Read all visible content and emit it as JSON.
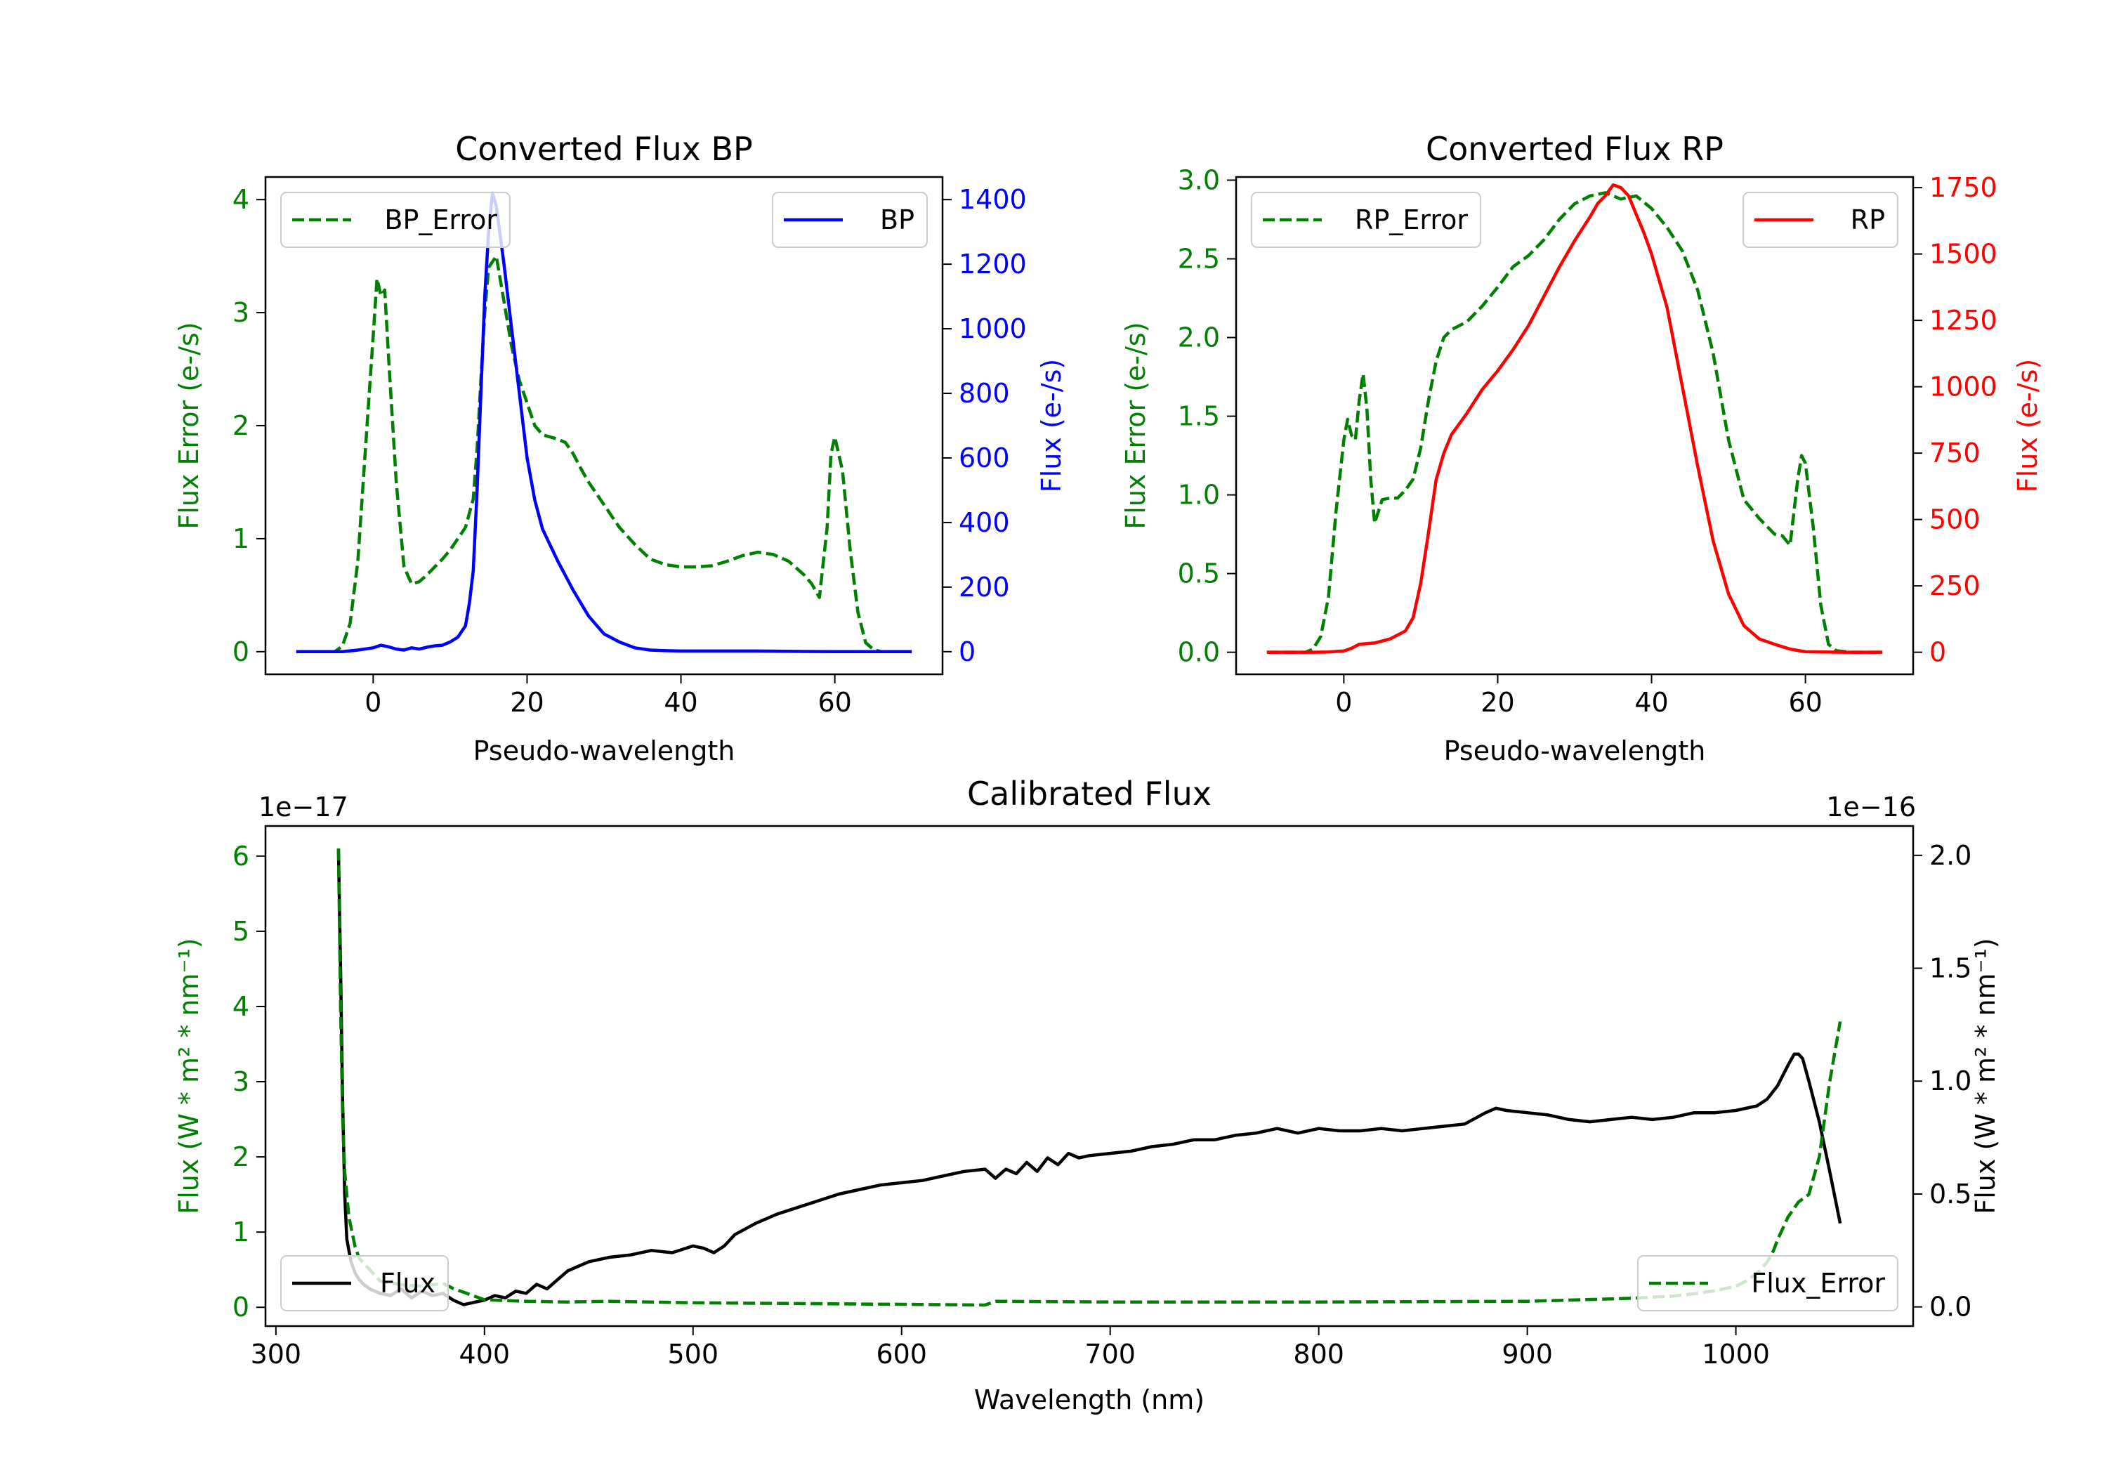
{
  "chart_data": [
    {
      "id": "bp",
      "type": "line",
      "title": "Converted Flux BP",
      "xlabel": "Pseudo-wavelength",
      "ylabel_left": "Flux Error (e-/s)",
      "ylabel_right": "Flux (e-/s)",
      "xlim": [
        -14,
        74
      ],
      "ylim_left": [
        -0.2,
        4.2
      ],
      "ylim_right": [
        -70,
        1470
      ],
      "xticks": [
        0,
        20,
        40,
        60
      ],
      "yticks_left": [
        0,
        1,
        2,
        3,
        4
      ],
      "yticks_right": [
        0,
        200,
        400,
        600,
        800,
        1000,
        1200,
        1400
      ],
      "legend_left": {
        "label": "BP_Error",
        "position": "upper left"
      },
      "legend_right": {
        "label": "BP",
        "position": "upper right"
      },
      "series": [
        {
          "name": "BP_Error",
          "axis": "left",
          "color": "#008000",
          "dash": true,
          "x": [
            -10,
            -5,
            -4,
            -3,
            -2,
            -1,
            0,
            0.5,
            1,
            1.5,
            2,
            3,
            4,
            5,
            6,
            7,
            8,
            9,
            10,
            11,
            12,
            13,
            13.5,
            14,
            14.5,
            15,
            16,
            17,
            18,
            19,
            20,
            21,
            22,
            23,
            24,
            25,
            26,
            27,
            28,
            30,
            32,
            34,
            36,
            38,
            40,
            42,
            44,
            46,
            48,
            50,
            52,
            54,
            56,
            57,
            58,
            59,
            59.5,
            60,
            61,
            62,
            63,
            64,
            65,
            66,
            68,
            70
          ],
          "y": [
            0,
            0,
            0.05,
            0.25,
            0.8,
            1.8,
            2.8,
            3.3,
            3.15,
            3.2,
            2.6,
            1.5,
            0.75,
            0.6,
            0.62,
            0.68,
            0.75,
            0.82,
            0.9,
            1.0,
            1.1,
            1.35,
            1.8,
            2.4,
            3.0,
            3.4,
            3.5,
            3.1,
            2.7,
            2.4,
            2.2,
            2.0,
            1.92,
            1.9,
            1.88,
            1.85,
            1.75,
            1.62,
            1.5,
            1.3,
            1.1,
            0.95,
            0.82,
            0.77,
            0.75,
            0.75,
            0.76,
            0.8,
            0.85,
            0.88,
            0.86,
            0.8,
            0.68,
            0.6,
            0.48,
            1.1,
            1.75,
            1.9,
            1.6,
            0.9,
            0.35,
            0.08,
            0.02,
            0,
            0,
            0
          ]
        },
        {
          "name": "BP",
          "axis": "right",
          "color": "#0000ff",
          "dash": false,
          "x": [
            -10,
            -4,
            -2,
            0,
            1,
            2,
            3,
            4,
            5,
            6,
            7,
            8,
            9,
            10,
            11,
            12,
            12.5,
            13,
            13.5,
            14,
            14.5,
            15,
            15.5,
            16,
            17,
            18,
            19,
            20,
            21,
            22,
            24,
            26,
            28,
            30,
            32,
            34,
            36,
            38,
            40,
            45,
            50,
            55,
            60,
            65,
            70
          ],
          "y": [
            0,
            0,
            5,
            12,
            20,
            15,
            8,
            5,
            12,
            8,
            14,
            18,
            20,
            30,
            45,
            80,
            150,
            250,
            500,
            800,
            1100,
            1300,
            1420,
            1380,
            1200,
            1000,
            800,
            600,
            470,
            380,
            280,
            190,
            110,
            55,
            30,
            12,
            5,
            3,
            2,
            2,
            2,
            1,
            0,
            0,
            0
          ]
        }
      ]
    },
    {
      "id": "rp",
      "type": "line",
      "title": "Converted Flux RP",
      "xlabel": "Pseudo-wavelength",
      "ylabel_left": "Flux Error (e-/s)",
      "ylabel_right": "Flux (e-/s)",
      "xlim": [
        -14,
        74
      ],
      "ylim_left": [
        -0.14,
        3.02
      ],
      "ylim_right": [
        -83,
        1790
      ],
      "xticks": [
        0,
        20,
        40,
        60
      ],
      "yticks_left": [
        0.0,
        0.5,
        1.0,
        1.5,
        2.0,
        2.5,
        3.0
      ],
      "yticks_right": [
        0,
        250,
        500,
        750,
        1000,
        1250,
        1500,
        1750
      ],
      "legend_left": {
        "label": "RP_Error",
        "position": "upper left"
      },
      "legend_right": {
        "label": "RP",
        "position": "upper right"
      },
      "series": [
        {
          "name": "RP_Error",
          "axis": "left",
          "color": "#008000",
          "dash": true,
          "x": [
            -10,
            -5,
            -4,
            -3,
            -2,
            -1,
            0,
            0.5,
            1,
            1.5,
            2,
            2.5,
            3,
            3.5,
            4,
            5,
            6,
            7,
            8,
            9,
            10,
            11,
            12,
            13,
            14,
            16,
            18,
            20,
            22,
            24,
            26,
            28,
            30,
            32,
            34,
            35,
            36,
            38,
            40,
            42,
            44,
            46,
            48,
            50,
            52,
            54,
            56,
            57,
            58,
            59,
            59.5,
            60,
            61,
            62,
            63,
            64,
            66,
            70
          ],
          "y": [
            0,
            0,
            0.02,
            0.1,
            0.35,
            0.9,
            1.35,
            1.48,
            1.38,
            1.35,
            1.6,
            1.77,
            1.55,
            1.1,
            0.82,
            0.97,
            0.98,
            0.98,
            1.03,
            1.1,
            1.3,
            1.6,
            1.85,
            2.0,
            2.05,
            2.1,
            2.2,
            2.32,
            2.45,
            2.52,
            2.62,
            2.75,
            2.85,
            2.9,
            2.92,
            2.9,
            2.88,
            2.9,
            2.82,
            2.7,
            2.55,
            2.3,
            1.9,
            1.35,
            0.97,
            0.85,
            0.75,
            0.74,
            0.68,
            1.1,
            1.25,
            1.2,
            0.8,
            0.3,
            0.05,
            0.01,
            0,
            0
          ]
        },
        {
          "name": "RP",
          "axis": "right",
          "color": "#ff0000",
          "dash": false,
          "x": [
            -10,
            -4,
            -2,
            0,
            1,
            2,
            4,
            6,
            8,
            9,
            10,
            11,
            12,
            13,
            14,
            16,
            18,
            20,
            22,
            24,
            26,
            28,
            30,
            32,
            33,
            34,
            35,
            36,
            37,
            38,
            39,
            40,
            42,
            44,
            46,
            48,
            50,
            52,
            54,
            56,
            58,
            60,
            65,
            70
          ],
          "y": [
            0,
            0,
            1,
            5,
            15,
            30,
            35,
            50,
            80,
            130,
            260,
            450,
            650,
            750,
            820,
            900,
            990,
            1060,
            1140,
            1230,
            1340,
            1450,
            1550,
            1640,
            1690,
            1720,
            1760,
            1750,
            1720,
            1650,
            1580,
            1500,
            1300,
            1000,
            700,
            420,
            220,
            100,
            50,
            30,
            12,
            2,
            0,
            0
          ]
        }
      ]
    },
    {
      "id": "calibrated",
      "type": "line",
      "title": "Calibrated Flux",
      "xlabel": "Wavelength (nm)",
      "ylabel_left": "Flux (W * m² * nm⁻¹)",
      "ylabel_right": "Flux (W * m² * nm⁻¹)",
      "offset_left": "1e−17",
      "offset_right": "1e−16",
      "xlim": [
        295,
        1085
      ],
      "ylim_left": [
        -0.25,
        6.4
      ],
      "ylim_right": [
        -0.085,
        2.13
      ],
      "xticks": [
        300,
        400,
        500,
        600,
        700,
        800,
        900,
        1000
      ],
      "yticks_left": [
        0,
        1,
        2,
        3,
        4,
        5,
        6
      ],
      "yticks_right": [
        0.0,
        0.5,
        1.0,
        1.5,
        2.0
      ],
      "legend_left": {
        "label": "Flux",
        "position": "lower left"
      },
      "legend_right": {
        "label": "Flux_Error",
        "position": "lower right"
      },
      "series": [
        {
          "name": "Flux",
          "axis": "right",
          "color": "#000000",
          "dash": false,
          "x": [
            330,
            331,
            332,
            333,
            334,
            336,
            338,
            340,
            342,
            345,
            350,
            355,
            360,
            365,
            370,
            375,
            380,
            385,
            390,
            395,
            400,
            405,
            410,
            415,
            420,
            425,
            430,
            435,
            440,
            445,
            450,
            455,
            460,
            470,
            480,
            490,
            500,
            505,
            510,
            515,
            520,
            530,
            540,
            550,
            560,
            570,
            580,
            590,
            600,
            610,
            620,
            630,
            640,
            645,
            650,
            655,
            660,
            665,
            670,
            675,
            680,
            685,
            690,
            700,
            710,
            720,
            730,
            740,
            750,
            760,
            770,
            780,
            790,
            800,
            810,
            820,
            830,
            840,
            850,
            860,
            870,
            880,
            885,
            890,
            900,
            910,
            920,
            930,
            940,
            950,
            960,
            970,
            980,
            990,
            1000,
            1010,
            1015,
            1020,
            1025,
            1028,
            1030,
            1032,
            1035,
            1040,
            1045,
            1050
          ],
          "y": [
            2.03,
            1.5,
            0.9,
            0.5,
            0.3,
            0.2,
            0.15,
            0.12,
            0.1,
            0.08,
            0.06,
            0.05,
            0.08,
            0.04,
            0.07,
            0.05,
            0.06,
            0.03,
            0.01,
            0.02,
            0.03,
            0.05,
            0.04,
            0.07,
            0.06,
            0.1,
            0.08,
            0.12,
            0.16,
            0.18,
            0.2,
            0.21,
            0.22,
            0.23,
            0.25,
            0.24,
            0.27,
            0.26,
            0.24,
            0.27,
            0.32,
            0.37,
            0.41,
            0.44,
            0.47,
            0.5,
            0.52,
            0.54,
            0.55,
            0.56,
            0.58,
            0.6,
            0.61,
            0.57,
            0.61,
            0.59,
            0.64,
            0.6,
            0.66,
            0.63,
            0.68,
            0.66,
            0.67,
            0.68,
            0.69,
            0.71,
            0.72,
            0.74,
            0.74,
            0.76,
            0.77,
            0.79,
            0.77,
            0.79,
            0.78,
            0.78,
            0.79,
            0.78,
            0.79,
            0.8,
            0.81,
            0.86,
            0.88,
            0.87,
            0.86,
            0.85,
            0.83,
            0.82,
            0.83,
            0.84,
            0.83,
            0.84,
            0.86,
            0.86,
            0.87,
            0.89,
            0.92,
            0.98,
            1.07,
            1.12,
            1.12,
            1.1,
            1.0,
            0.82,
            0.6,
            0.37
          ]
        },
        {
          "name": "Flux_Error",
          "axis": "left",
          "color": "#008000",
          "dash": true,
          "x": [
            330,
            331,
            332,
            333,
            335,
            338,
            340,
            345,
            350,
            360,
            370,
            380,
            385,
            390,
            400,
            420,
            440,
            460,
            480,
            500,
            550,
            600,
            640,
            645,
            700,
            800,
            900,
            950,
            970,
            980,
            990,
            1000,
            1005,
            1010,
            1015,
            1018,
            1020,
            1025,
            1030,
            1035,
            1040,
            1045,
            1050
          ],
          "y": [
            6.1,
            4.0,
            2.5,
            1.8,
            1.2,
            0.8,
            0.65,
            0.5,
            0.35,
            0.3,
            0.28,
            0.32,
            0.25,
            0.2,
            0.1,
            0.08,
            0.07,
            0.08,
            0.07,
            0.06,
            0.05,
            0.04,
            0.03,
            0.08,
            0.07,
            0.07,
            0.08,
            0.12,
            0.15,
            0.18,
            0.22,
            0.28,
            0.35,
            0.45,
            0.6,
            0.75,
            0.9,
            1.2,
            1.4,
            1.5,
            2.0,
            3.0,
            3.8
          ]
        }
      ]
    }
  ]
}
